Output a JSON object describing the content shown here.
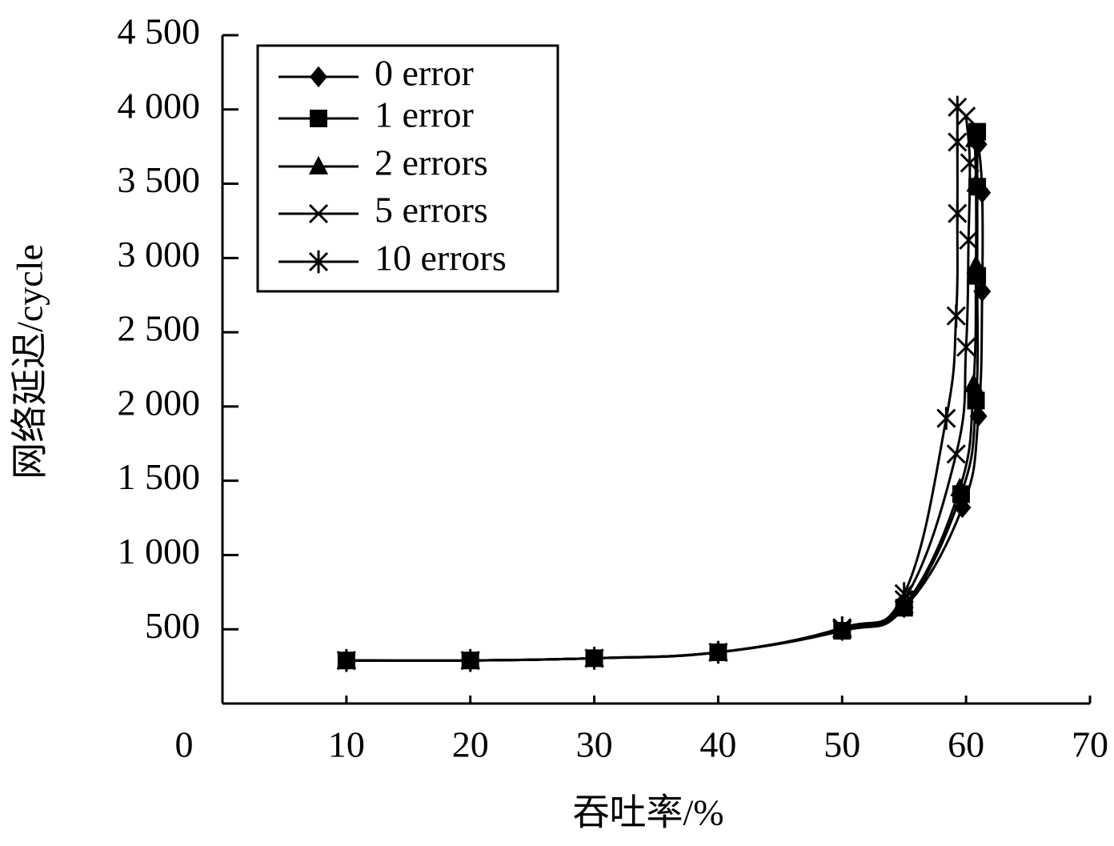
{
  "chart_data": {
    "type": "line",
    "x_label": "吞吐率/%",
    "y_label": "网络延迟/cycle",
    "xlim": [
      0,
      70
    ],
    "xticks": [
      0,
      10,
      20,
      30,
      40,
      50,
      60,
      70
    ],
    "ylim": [
      0,
      4500
    ],
    "yticks": [
      500,
      {
        "value": 1000,
        "label": "1 000"
      },
      {
        "value": 1500,
        "label": "1 500"
      },
      {
        "value": 2000,
        "label": "2 000"
      },
      {
        "value": 2500,
        "label": "2 500"
      },
      {
        "value": 3000,
        "label": "3 000"
      },
      {
        "value": 3500,
        "label": "3 500"
      },
      {
        "value": 4000,
        "label": "4 000"
      },
      {
        "value": 4500,
        "label": "4 500"
      }
    ],
    "legend": "upper left",
    "series": [
      {
        "name": "0 error",
        "color": "#000000",
        "marker": "diamond",
        "x": [
          10,
          20,
          30,
          40,
          50,
          55,
          59.7,
          61,
          61.3,
          61.3,
          61
        ],
        "values": [
          290,
          290,
          305,
          345,
          490,
          645,
          1320,
          1935,
          2775,
          3440,
          3765
        ]
      },
      {
        "name": "1 error",
        "color": "#000000",
        "marker": "square",
        "x": [
          10,
          20,
          30,
          40,
          50,
          55,
          59.6,
          60.8,
          60.9,
          60.9,
          60.9
        ],
        "values": [
          290,
          290,
          305,
          345,
          490,
          645,
          1410,
          2040,
          2880,
          3480,
          3850
        ]
      },
      {
        "name": "2 errors",
        "color": "#000000",
        "marker": "triangle",
        "x": [
          10,
          20,
          30,
          40,
          50,
          55,
          59.5,
          60.6,
          60.8,
          60.8,
          60.7
        ],
        "values": [
          290,
          290,
          305,
          345,
          495,
          660,
          1450,
          2150,
          2950,
          3500,
          3800
        ]
      },
      {
        "name": "5 errors",
        "color": "#000000",
        "marker": "x",
        "x": [
          10,
          20,
          30,
          40,
          50,
          55,
          59.2,
          60,
          60.2,
          60.3,
          60
        ],
        "values": [
          290,
          290,
          305,
          345,
          500,
          700,
          1680,
          2400,
          3120,
          3640,
          3955
        ]
      },
      {
        "name": "10 errors",
        "color": "#000000",
        "marker": "asterisk",
        "x": [
          10,
          20,
          30,
          40,
          50,
          55,
          58.4,
          59.2,
          59.3,
          59.3,
          59.3
        ],
        "values": [
          290,
          290,
          305,
          345,
          510,
          740,
          1920,
          2610,
          3300,
          3780,
          4015
        ]
      }
    ]
  }
}
